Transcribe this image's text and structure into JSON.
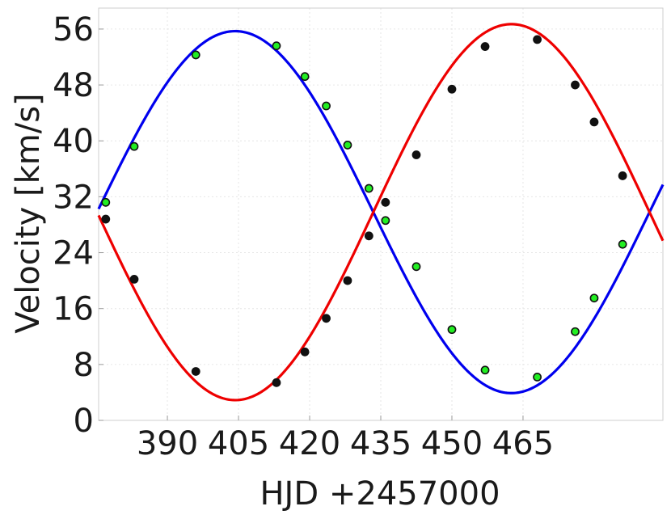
{
  "chart_data": {
    "type": "line",
    "title": "",
    "xlabel": "HJD +2457000",
    "ylabel": "Velocity [km/s]",
    "xlim": [
      375.5,
      494.5
    ],
    "ylim": [
      0,
      59
    ],
    "x_ticks": [
      390,
      405,
      420,
      435,
      450,
      465
    ],
    "y_ticks": [
      0,
      8,
      16,
      24,
      32,
      40,
      48,
      56
    ],
    "grid": true,
    "legend": "none",
    "series": [
      {
        "type": "curve",
        "color": "#0000ee",
        "model": {
          "gamma": 29.8,
          "amplitude": 25.9,
          "period": 116.5,
          "peak_x": 404.3
        },
        "x": [
          375.5,
          380,
          385,
          390,
          395,
          400,
          405,
          410,
          415,
          420,
          425,
          430,
          435,
          440,
          445,
          450,
          455,
          460,
          465,
          470,
          475,
          480,
          485,
          490,
          494.5
        ],
        "y": [
          29.0,
          35.5,
          41.8,
          47.6,
          52.0,
          54.9,
          55.7,
          54.4,
          51.1,
          46.1,
          40.0,
          33.4,
          26.6,
          20.2,
          14.4,
          9.6,
          6.2,
          4.3,
          4.1,
          5.8,
          9.0,
          13.6,
          19.4,
          25.9,
          32.4
        ]
      },
      {
        "type": "curve",
        "color": "#ee0000",
        "model": {
          "gamma": 29.8,
          "amplitude": 26.9,
          "period": 116.5,
          "peak_x": 462.55
        },
        "x": [
          375.5,
          380,
          385,
          390,
          395,
          400,
          405,
          410,
          415,
          420,
          425,
          430,
          435,
          440,
          445,
          450,
          455,
          460,
          465,
          470,
          475,
          480,
          485,
          490,
          494.5
        ],
        "y": [
          30.8,
          24.0,
          17.5,
          11.5,
          6.9,
          3.9,
          3.1,
          4.4,
          7.8,
          13.0,
          19.3,
          26.2,
          33.3,
          40.0,
          46.0,
          51.0,
          54.5,
          56.5,
          56.7,
          55.0,
          51.6,
          46.8,
          40.8,
          34.0,
          27.2
        ]
      },
      {
        "type": "scatter",
        "color": "#22ee22",
        "edge_color": "#111111",
        "x": [
          377,
          383,
          396,
          413,
          419,
          423.5,
          428,
          432.5,
          436,
          442.5,
          450,
          457,
          468,
          476,
          480,
          486
        ],
        "y": [
          31.2,
          39.2,
          52.3,
          53.6,
          49.2,
          45.0,
          39.4,
          33.2,
          28.6,
          22.0,
          13.0,
          7.2,
          6.2,
          12.7,
          17.5,
          25.2
        ]
      },
      {
        "type": "scatter",
        "color": "#111111",
        "edge_color": "#111111",
        "x": [
          377,
          383,
          396,
          413,
          419,
          423.5,
          428,
          432.5,
          436,
          442.5,
          450,
          457,
          468,
          476,
          480,
          486
        ],
        "y": [
          28.8,
          20.2,
          7.0,
          5.4,
          9.8,
          14.6,
          20.0,
          26.4,
          31.2,
          38.0,
          47.4,
          53.5,
          54.5,
          48.0,
          42.7,
          35.0
        ]
      }
    ]
  }
}
